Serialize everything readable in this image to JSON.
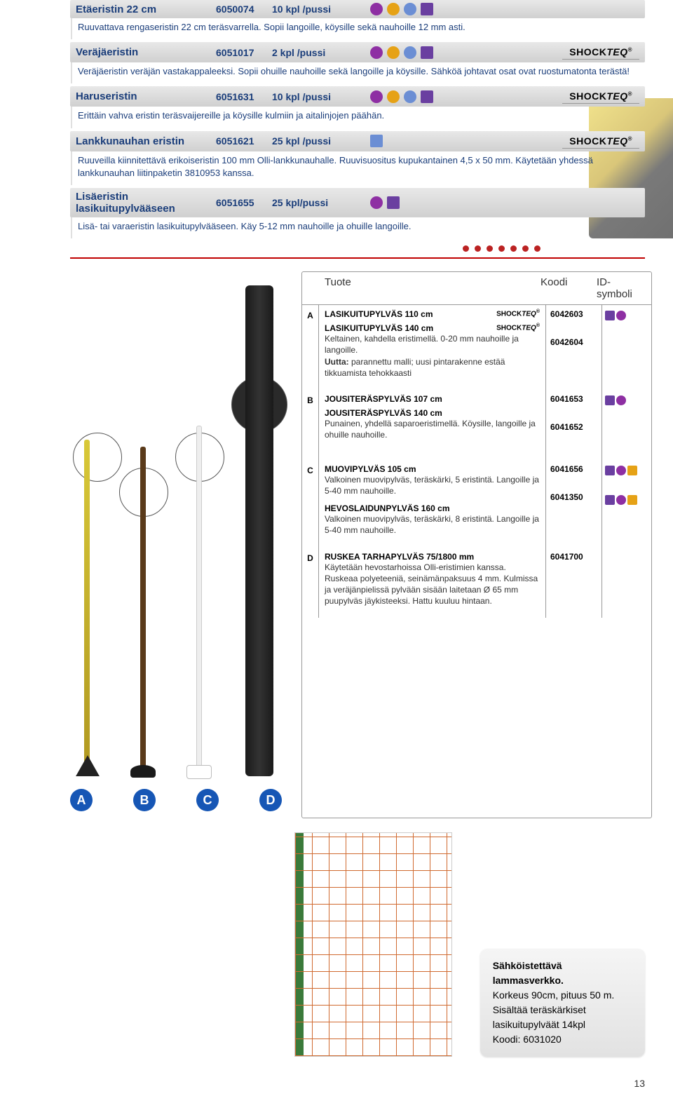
{
  "colors": {
    "purple": "#8e2fa3",
    "orange": "#e6a216",
    "blue": "#6b8ed4",
    "green": "#5fb04d",
    "darkpurple": "#6a3fa0",
    "red": "#b22222",
    "navy": "#1a3d7a",
    "brandline": "#999999"
  },
  "entries": [
    {
      "title": "Etäeristin 22 cm",
      "code": "6050074",
      "pack": "10 kpl /pussi",
      "dots": [
        "purple",
        "orange",
        "blue"
      ],
      "squares": [
        "darkpurple"
      ],
      "brand": "",
      "desc": "Ruuvattava rengaseristin 22 cm teräsvarrella. Sopii langoille, köysille sekä nauhoille 12 mm asti."
    },
    {
      "title": "Veräjäeristin",
      "code": "6051017",
      "pack": "2 kpl /pussi",
      "dots": [
        "purple",
        "orange",
        "blue"
      ],
      "squares": [
        "darkpurple"
      ],
      "brand": "SHOCKTEQ",
      "desc": "Veräjäeristin veräjän vastakappaleeksi. Sopii ohuille nauhoille sekä langoille ja köysille. Sähköä johtavat osat ovat ruostumatonta terästä!"
    },
    {
      "title": "Haruseristin",
      "code": "6051631",
      "pack": "10 kpl /pussi",
      "dots": [
        "purple",
        "orange",
        "blue"
      ],
      "squares": [
        "darkpurple"
      ],
      "brand": "SHOCKTEQ",
      "desc": "Erittäin vahva eristin teräsvaijereille ja köysille kulmiin ja aitalinjojen päähän."
    },
    {
      "title": "Lankkunauhan eristin",
      "code": "6051621",
      "pack": "25 kpl /pussi",
      "dots": [],
      "squares": [
        "blue"
      ],
      "brand": "SHOCKTEQ",
      "desc": "Ruuveilla kiinnitettävä erikoiseristin 100 mm Olli-lankkunauhalle. Ruuvisuositus kupukantainen 4,5 x 50 mm. Käytetään yhdessä lankkunauhan liitinpaketin 3810953 kanssa."
    },
    {
      "title": "Lisäeristin lasikuitupylvääseen",
      "code": "6051655",
      "pack": "25 kpl/pussi",
      "dots": [
        "purple"
      ],
      "squares": [
        "darkpurple"
      ],
      "brand": "",
      "desc": "Lisä- tai varaeristin lasikuitupylvääseen. Käy 5-12 mm nauhoille ja ohuille langoille."
    }
  ],
  "table": {
    "headers": {
      "product": "Tuote",
      "code": "Koodi",
      "sym": "ID-symboli"
    },
    "groups": [
      {
        "letter": "A",
        "items": [
          {
            "name": "LASIKUITUPYLVÄS 110 cm",
            "brand": "SHOCKTEQ",
            "desc": "",
            "code": "6042603",
            "syms": [
              {
                "t": "sq",
                "c": "darkpurple"
              },
              {
                "t": "ci",
                "c": "purple"
              }
            ]
          },
          {
            "name": "LASIKUITUPYLVÄS 140 cm",
            "brand": "SHOCKTEQ",
            "desc": "Keltainen, kahdella eristimellä. 0-20 mm nauhoille ja langoille.\nUutta: parannettu malli; uusi pintarakenne estää tikkuamista tehokkaasti",
            "code": "6042604",
            "syms": []
          }
        ]
      },
      {
        "letter": "B",
        "items": [
          {
            "name": "JOUSITERÄSPYLVÄS 107 cm",
            "brand": "",
            "desc": "",
            "code": "6041653",
            "syms": [
              {
                "t": "sq",
                "c": "darkpurple"
              },
              {
                "t": "ci",
                "c": "purple"
              }
            ]
          },
          {
            "name": "JOUSITERÄSPYLVÄS 140 cm",
            "brand": "",
            "desc": "Punainen, yhdellä saparoeristimellä. Köysille, langoille ja ohuille nauhoille.",
            "code": "6041652",
            "syms": []
          }
        ]
      },
      {
        "letter": "C",
        "items": [
          {
            "name": "MUOVIPYLVÄS 105 cm",
            "brand": "",
            "desc": "Valkoinen muovipylväs, teräskärki, 5 eristintä. Langoille ja 5-40 mm nauhoille.",
            "code": "6041656",
            "syms": [
              {
                "t": "sq",
                "c": "darkpurple"
              },
              {
                "t": "ci",
                "c": "purple"
              },
              {
                "t": "sq",
                "c": "orange"
              }
            ]
          },
          {
            "name": "HEVOSLAIDUNPYLVÄS 160 cm",
            "brand": "",
            "desc": "Valkoinen muovipylväs, teräskärki, 8 eristintä. Langoille ja 5-40 mm nauhoille.",
            "code": "6041350",
            "syms": [
              {
                "t": "sq",
                "c": "darkpurple"
              },
              {
                "t": "ci",
                "c": "purple"
              },
              {
                "t": "sq",
                "c": "orange"
              }
            ]
          }
        ]
      },
      {
        "letter": "D",
        "items": [
          {
            "name": "RUSKEA TARHAPYLVÄS 75/1800 mm",
            "brand": "",
            "desc": "Käytetään hevostarhoissa Olli-eristimien kanssa. Ruskeaa polyeteeniä, seinämänpaksuus 4 mm. Kulmissa ja veräjänpielissä pylvään sisään laitetaan Ø 65 mm puupylväs jäykisteeksi. Hattu kuuluu hintaan.",
            "code": "6041700",
            "syms": []
          }
        ]
      }
    ]
  },
  "poleLabels": [
    "A",
    "B",
    "C",
    "D"
  ],
  "callout": {
    "title": "Sähköistettävä lammasverkko.",
    "line1": "Korkeus 90cm, pituus 50 m.",
    "line2": "Sisältää teräskärkiset lasikuitupylväät 14kpl",
    "line3": "Koodi: 6031020"
  },
  "pageNumber": "13"
}
